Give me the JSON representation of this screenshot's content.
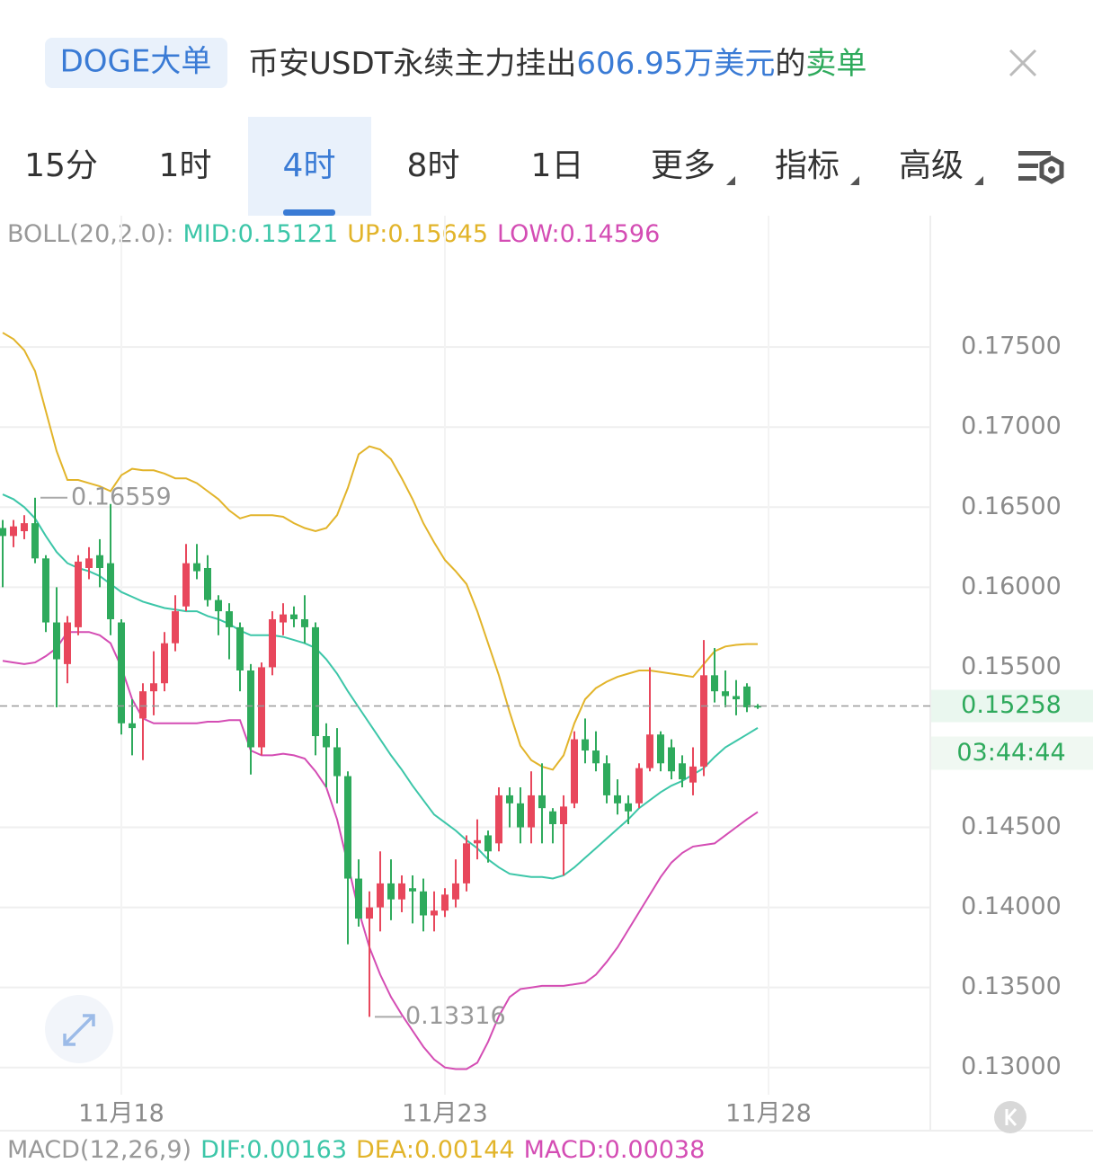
{
  "header": {
    "badge": "DOGE大单",
    "text_parts": [
      "币安USDT永续主力挂出",
      "606.95万美元",
      "的",
      "卖单"
    ]
  },
  "tabs": {
    "items": [
      {
        "label": "15分"
      },
      {
        "label": "1时"
      },
      {
        "label": "4时"
      },
      {
        "label": "8时"
      },
      {
        "label": "1日"
      },
      {
        "label": "更多",
        "menu": true
      },
      {
        "label": "指标",
        "menu": true
      },
      {
        "label": "高级",
        "menu": true
      }
    ],
    "selected": 2
  },
  "chart_data": {
    "type": "candlestick",
    "legend": {
      "prefix": "BOLL(20,2.0):",
      "items": [
        {
          "label": "MID:0.15121",
          "color": "#3cc6a8"
        },
        {
          "label": "UP:0.15645",
          "color": "#e2b42a"
        },
        {
          "label": "LOW:0.14596",
          "color": "#d44db4"
        }
      ]
    },
    "open": [
      0.1637,
      0.1632,
      0.1635,
      0.164,
      0.1618,
      0.1578,
      0.1552,
      0.1575,
      0.1612,
      0.162,
      0.1615,
      0.1578,
      0.1515,
      0.1518,
      0.1535,
      0.154,
      0.1565,
      0.1588,
      0.1615,
      0.1612,
      0.1592,
      0.1585,
      0.1575,
      0.1548,
      0.15,
      0.155,
      0.1578,
      0.1583,
      0.158,
      0.1575,
      0.1507,
      0.15,
      0.1482,
      0.1418,
      0.1393,
      0.14,
      0.1415,
      0.1405,
      0.1412,
      0.141,
      0.1395,
      0.1398,
      0.1405,
      0.1415,
      0.144,
      0.1445,
      0.144,
      0.147,
      0.1465,
      0.145,
      0.147,
      0.146,
      0.1452,
      0.1465,
      0.1505,
      0.1498,
      0.149,
      0.147,
      0.1465,
      0.1465,
      0.1487,
      0.1508,
      0.15,
      0.149,
      0.1478,
      0.1488,
      0.1545,
      0.1535,
      0.1532,
      0.1538,
      0.1526
    ],
    "high": [
      0.1642,
      0.1642,
      0.1645,
      0.16559,
      0.162,
      0.16,
      0.1582,
      0.162,
      0.1625,
      0.163,
      0.1652,
      0.158,
      0.153,
      0.154,
      0.156,
      0.1572,
      0.1595,
      0.1627,
      0.1627,
      0.162,
      0.1595,
      0.159,
      0.1578,
      0.1552,
      0.1553,
      0.1585,
      0.159,
      0.1588,
      0.1595,
      0.1578,
      0.1515,
      0.1512,
      0.1485,
      0.143,
      0.141,
      0.1435,
      0.143,
      0.142,
      0.142,
      0.1418,
      0.141,
      0.1412,
      0.143,
      0.1445,
      0.1455,
      0.1448,
      0.1475,
      0.1475,
      0.1475,
      0.1485,
      0.149,
      0.1462,
      0.147,
      0.151,
      0.1518,
      0.151,
      0.1495,
      0.148,
      0.147,
      0.149,
      0.155,
      0.151,
      0.1505,
      0.1495,
      0.15,
      0.1567,
      0.1562,
      0.1548,
      0.1542,
      0.154,
      0.1527
    ],
    "low": [
      0.16,
      0.1625,
      0.163,
      0.1615,
      0.1572,
      0.1525,
      0.154,
      0.157,
      0.1605,
      0.16,
      0.157,
      0.1508,
      0.1495,
      0.1492,
      0.152,
      0.1535,
      0.156,
      0.1585,
      0.1605,
      0.1588,
      0.157,
      0.1555,
      0.1535,
      0.1483,
      0.1495,
      0.1545,
      0.157,
      0.1575,
      0.1565,
      0.1495,
      0.1475,
      0.1465,
      0.1377,
      0.1388,
      0.13316,
      0.1385,
      0.1392,
      0.1397,
      0.139,
      0.1385,
      0.1385,
      0.1394,
      0.14,
      0.141,
      0.143,
      0.1428,
      0.1435,
      0.145,
      0.144,
      0.144,
      0.144,
      0.144,
      0.142,
      0.1462,
      0.149,
      0.1485,
      0.1465,
      0.1458,
      0.1452,
      0.1462,
      0.1485,
      0.1485,
      0.148,
      0.1475,
      0.147,
      0.1482,
      0.1528,
      0.1525,
      0.152,
      0.1522,
      0.1524
    ],
    "close": [
      0.1632,
      0.1638,
      0.164,
      0.1618,
      0.1578,
      0.1555,
      0.1578,
      0.1616,
      0.1618,
      0.1612,
      0.158,
      0.1515,
      0.1512,
      0.1535,
      0.154,
      0.1565,
      0.1585,
      0.1615,
      0.161,
      0.1592,
      0.1585,
      0.1575,
      0.1548,
      0.15,
      0.155,
      0.158,
      0.1583,
      0.158,
      0.1575,
      0.1507,
      0.15,
      0.1482,
      0.1418,
      0.1393,
      0.14,
      0.1415,
      0.1405,
      0.1415,
      0.141,
      0.1395,
      0.1398,
      0.1408,
      0.1415,
      0.144,
      0.1442,
      0.1435,
      0.147,
      0.1465,
      0.145,
      0.147,
      0.1462,
      0.1452,
      0.1463,
      0.1505,
      0.1498,
      0.149,
      0.147,
      0.1465,
      0.146,
      0.1487,
      0.1508,
      0.149,
      0.1485,
      0.148,
      0.1488,
      0.1545,
      0.1535,
      0.1532,
      0.153,
      0.1525,
      0.15258
    ],
    "up_color": "#e8475c",
    "down_color": "#2eaa5c",
    "lines": [
      {
        "color": "#e2b42a",
        "values": [
          0.1759,
          0.1755,
          0.1748,
          0.1735,
          0.171,
          0.1685,
          0.1667,
          0.1667,
          0.1665,
          0.1663,
          0.166,
          0.167,
          0.1674,
          0.1673,
          0.1673,
          0.1671,
          0.1668,
          0.1668,
          0.1665,
          0.166,
          0.1655,
          0.1648,
          0.1643,
          0.1645,
          0.1645,
          0.1645,
          0.1644,
          0.164,
          0.1637,
          0.1635,
          0.1637,
          0.1645,
          0.1662,
          0.1683,
          0.1688,
          0.1686,
          0.168,
          0.1668,
          0.1655,
          0.164,
          0.1628,
          0.1617,
          0.161,
          0.1602,
          0.1585,
          0.1565,
          0.1545,
          0.1522,
          0.1501,
          0.1492,
          0.1488,
          0.1486,
          0.1495,
          0.1515,
          0.153,
          0.1537,
          0.1541,
          0.1544,
          0.1546,
          0.1548,
          0.1548,
          0.1547,
          0.1546,
          0.1545,
          0.1544,
          0.1552,
          0.156,
          0.1563,
          0.1564,
          0.15645,
          0.15645
        ]
      },
      {
        "color": "#3cc6a8",
        "values": [
          0.1658,
          0.1655,
          0.165,
          0.1643,
          0.1632,
          0.1622,
          0.1615,
          0.1612,
          0.161,
          0.1607,
          0.1602,
          0.1597,
          0.1594,
          0.1591,
          0.1589,
          0.1587,
          0.1586,
          0.1585,
          0.1585,
          0.1582,
          0.158,
          0.1577,
          0.1573,
          0.157,
          0.157,
          0.157,
          0.1569,
          0.1567,
          0.1565,
          0.1562,
          0.1555,
          0.1546,
          0.1535,
          0.1525,
          0.1515,
          0.1505,
          0.1495,
          0.1486,
          0.1476,
          0.1467,
          0.1458,
          0.1453,
          0.1448,
          0.1442,
          0.1437,
          0.143,
          0.1425,
          0.1421,
          0.142,
          0.1419,
          0.1419,
          0.1418,
          0.142,
          0.1425,
          0.1431,
          0.1437,
          0.1443,
          0.1449,
          0.1455,
          0.1462,
          0.1467,
          0.1472,
          0.1476,
          0.1479,
          0.1483,
          0.1487,
          0.1494,
          0.15,
          0.1504,
          0.1508,
          0.15121
        ]
      },
      {
        "color": "#d44db4",
        "values": [
          0.1554,
          0.1553,
          0.1552,
          0.1553,
          0.1557,
          0.1562,
          0.1572,
          0.1572,
          0.1572,
          0.157,
          0.1565,
          0.155,
          0.153,
          0.1518,
          0.1515,
          0.1515,
          0.1515,
          0.1515,
          0.1515,
          0.1516,
          0.1516,
          0.1517,
          0.1517,
          0.1498,
          0.1495,
          0.1495,
          0.1496,
          0.1495,
          0.1493,
          0.1485,
          0.1475,
          0.1455,
          0.1427,
          0.1398,
          0.1375,
          0.1358,
          0.1344,
          0.1333,
          0.1323,
          0.1313,
          0.1305,
          0.13,
          0.1299,
          0.1299,
          0.1303,
          0.1316,
          0.1332,
          0.1344,
          0.1349,
          0.135,
          0.1351,
          0.1351,
          0.1351,
          0.1352,
          0.1353,
          0.1358,
          0.1366,
          0.1375,
          0.1386,
          0.1397,
          0.1408,
          0.1419,
          0.1428,
          0.1434,
          0.1438,
          0.1439,
          0.144,
          0.1445,
          0.145,
          0.1455,
          0.14596
        ]
      }
    ],
    "ylim": [
      0.1283,
      0.1804
    ],
    "yticks": [
      {
        "value": 0.13,
        "label": "0.13000"
      },
      {
        "value": 0.135,
        "label": "0.13500"
      },
      {
        "value": 0.14,
        "label": "0.14000"
      },
      {
        "value": 0.145,
        "label": "0.14500"
      },
      {
        "value": 0.155,
        "label": "0.15500"
      },
      {
        "value": 0.16,
        "label": "0.16000"
      },
      {
        "value": 0.165,
        "label": "0.16500"
      },
      {
        "value": 0.17,
        "label": "0.17000"
      },
      {
        "value": 0.175,
        "label": "0.17500"
      }
    ],
    "xlim": [
      -0.25,
      86
    ],
    "xticks": [
      {
        "value": 11,
        "label": "11月18"
      },
      {
        "value": 41,
        "label": "11月23"
      },
      {
        "value": 71,
        "label": "11月28"
      }
    ],
    "grid": true,
    "last_price": 0.15258,
    "countdown": "03:44:44",
    "annotations": [
      {
        "index": 3,
        "value": 0.16559
      },
      {
        "index": 34,
        "value": 0.13316
      }
    ]
  },
  "macd_legend": {
    "prefix": "MACD(12,26,9)",
    "items": [
      {
        "label": "DIF:0.00163",
        "color": "#3cc6a8"
      },
      {
        "label": "DEA:0.00144",
        "color": "#e2b42a"
      },
      {
        "label": "MACD:0.00038",
        "color": "#d44db4"
      }
    ]
  }
}
